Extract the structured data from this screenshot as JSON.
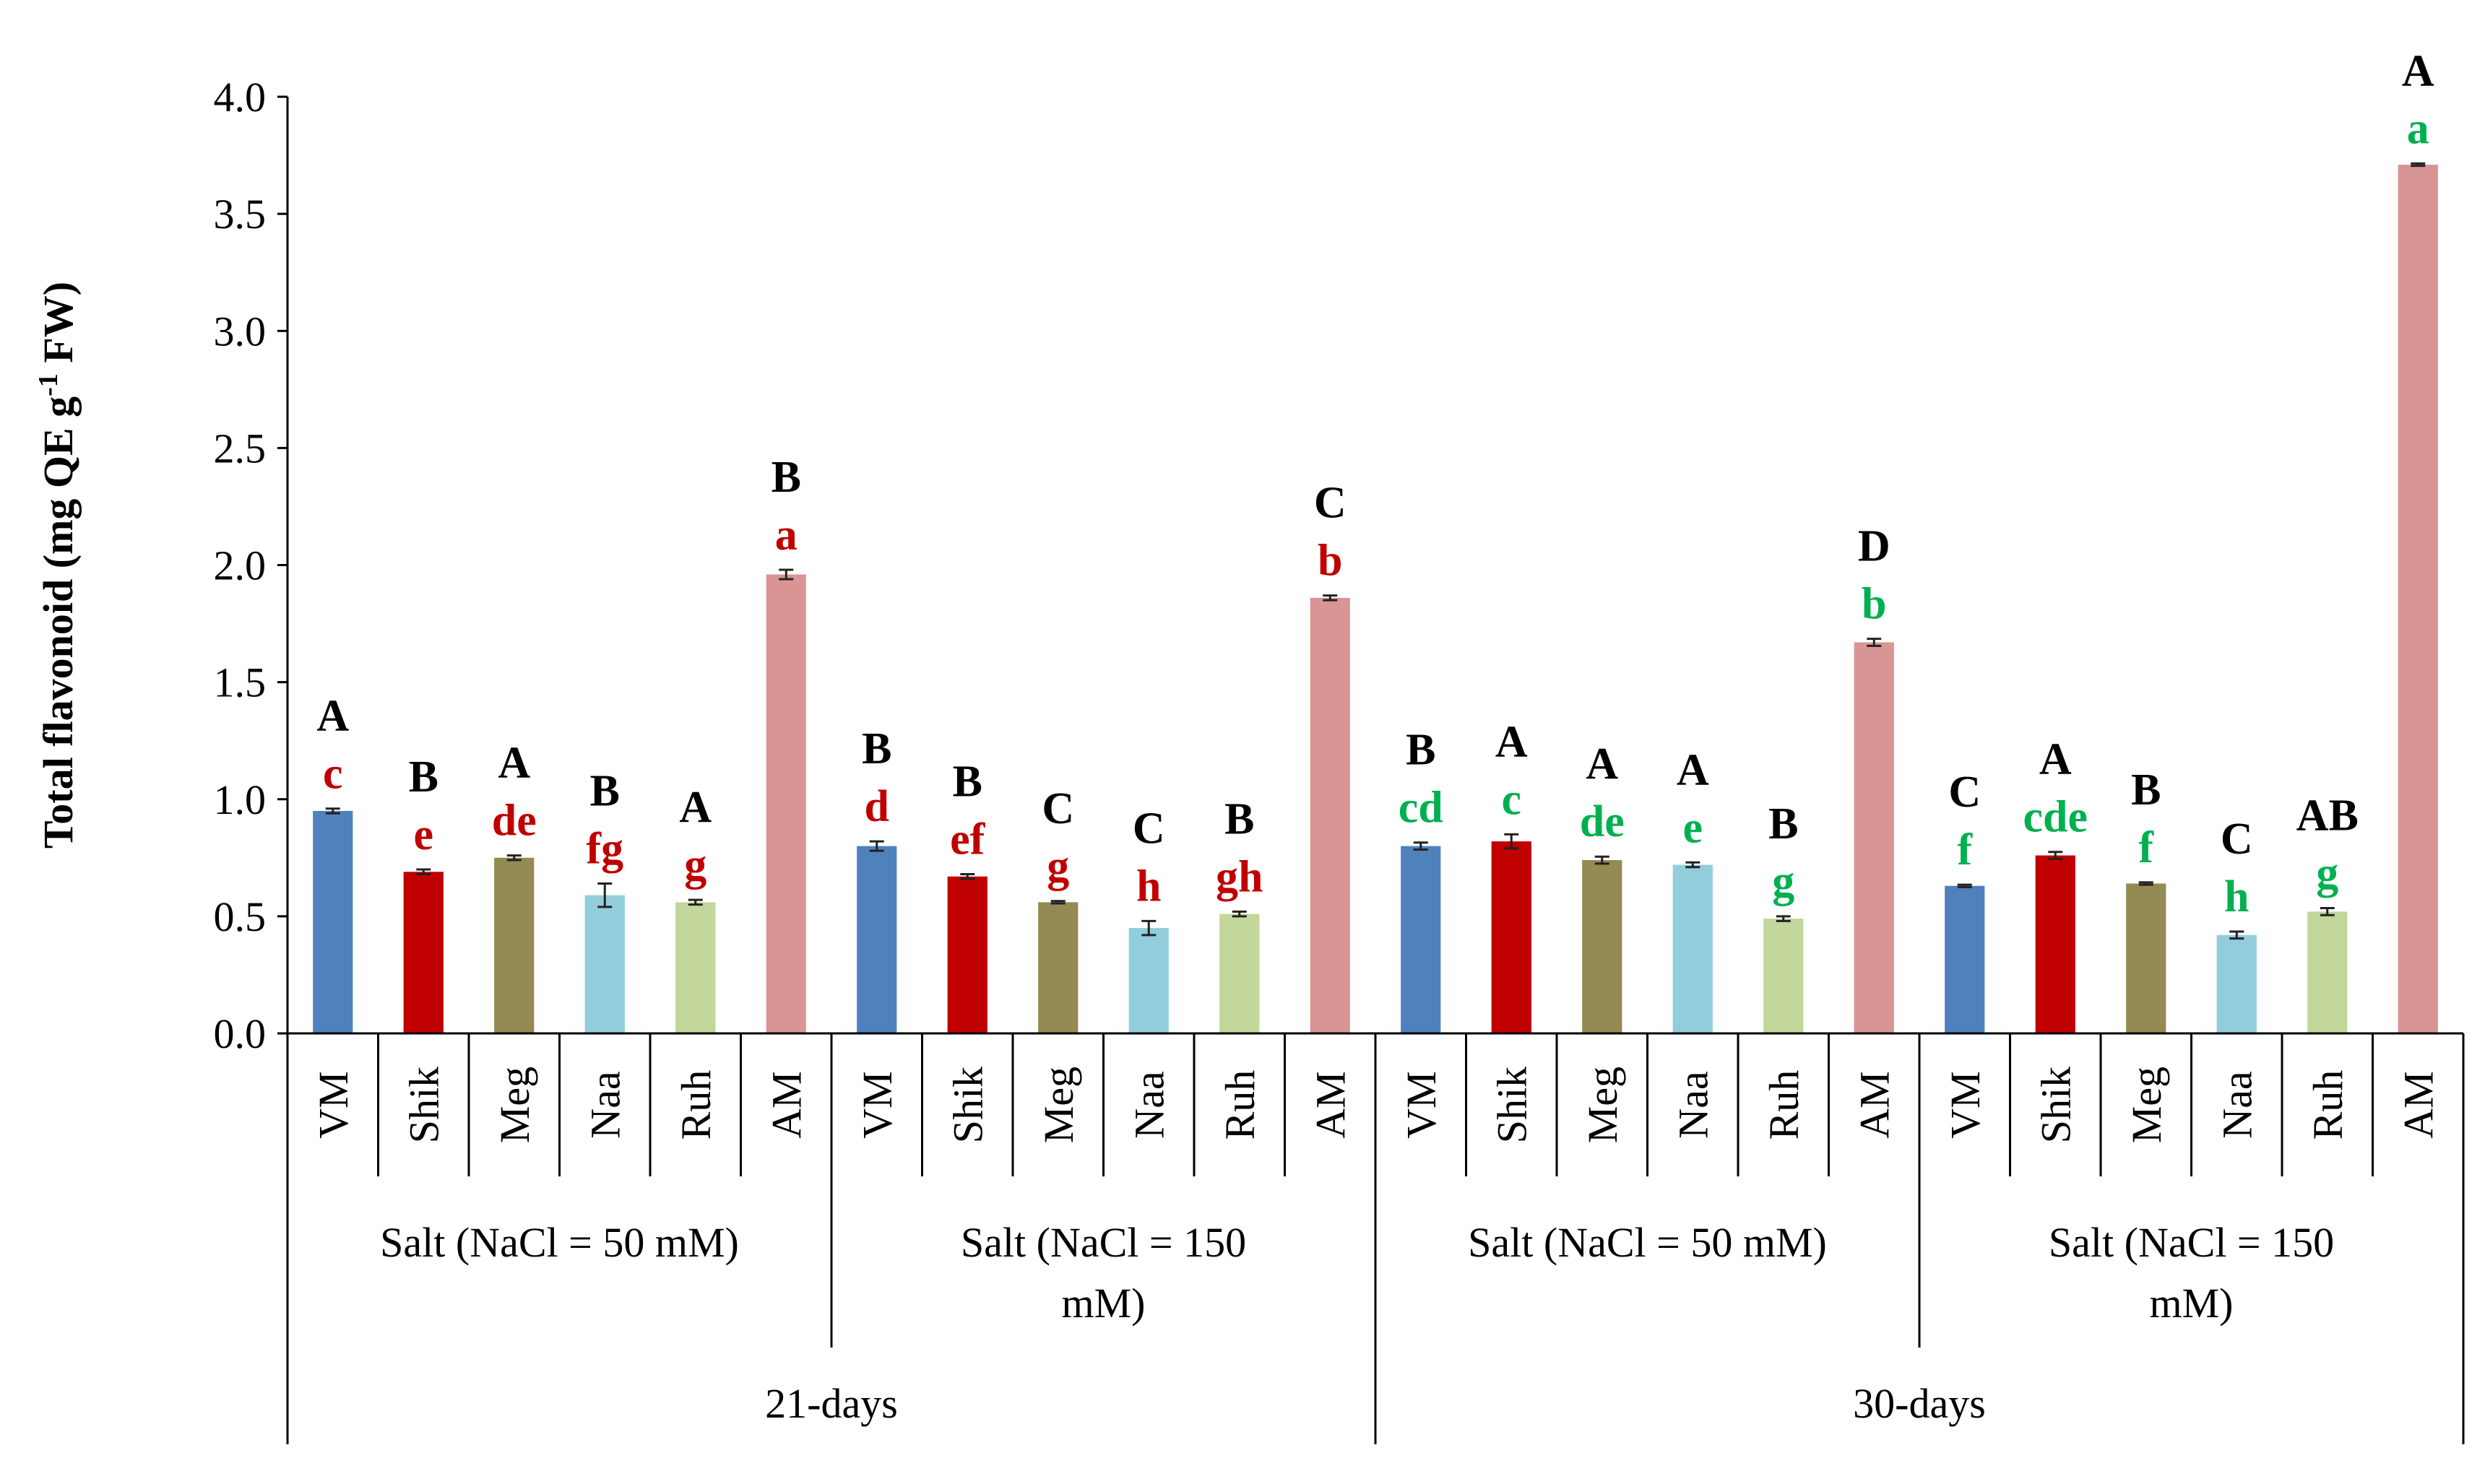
{
  "chart_data": {
    "type": "bar",
    "ylabel": "Total flavonoid (mg QE g",
    "ylabel_sup": "-1",
    "ylabel_end": " FW)",
    "ylim": [
      0,
      4.0
    ],
    "yticks": [
      "0.0",
      "0.5",
      "1.0",
      "1.5",
      "2.0",
      "2.5",
      "3.0",
      "3.5",
      "4.0"
    ],
    "grid": false,
    "categories": [
      "VM",
      "Shik",
      "Meg",
      "Naa",
      "Ruh",
      "AM",
      "VM",
      "Shik",
      "Meg",
      "Naa",
      "Ruh",
      "AM",
      "VM",
      "Shik",
      "Meg",
      "Naa",
      "Ruh",
      "AM",
      "VM",
      "Shik",
      "Meg",
      "Naa",
      "Ruh",
      "AM"
    ],
    "values": [
      0.95,
      0.69,
      0.75,
      0.59,
      0.56,
      1.96,
      0.8,
      0.67,
      0.56,
      0.45,
      0.51,
      1.86,
      0.8,
      0.82,
      0.74,
      0.72,
      0.49,
      1.67,
      0.63,
      0.76,
      0.64,
      0.42,
      0.52,
      3.71
    ],
    "errors": [
      0.01,
      0.01,
      0.01,
      0.05,
      0.01,
      0.02,
      0.02,
      0.01,
      0.005,
      0.03,
      0.01,
      0.01,
      0.015,
      0.03,
      0.015,
      0.01,
      0.01,
      0.015,
      0.005,
      0.015,
      0.005,
      0.015,
      0.015,
      0.005
    ],
    "bar_colors": [
      "#4f81bd",
      "#c00000",
      "#948a54",
      "#92cddc",
      "#c3d69b",
      "#d99594"
    ],
    "upper_letters": [
      "A",
      "B",
      "A",
      "B",
      "A",
      "B",
      "B",
      "B",
      "C",
      "C",
      "B",
      "C",
      "B",
      "A",
      "A",
      "A",
      "B",
      "D",
      "C",
      "A",
      "B",
      "C",
      "AB",
      "A"
    ],
    "upper_letter_color": "#000000",
    "lower_letters": [
      "c",
      "e",
      "de",
      "fg",
      "g",
      "a",
      "d",
      "ef",
      "g",
      "h",
      "gh",
      "b",
      "cd",
      "c",
      "de",
      "e",
      "g",
      "b",
      "f",
      "cde",
      "f",
      "h",
      "g",
      "a"
    ],
    "lower_letter_colors": [
      "#c00000",
      "#00b050"
    ],
    "groups": [
      {
        "label_lines": [
          "Salt  (NaCl = 50 mM)"
        ]
      },
      {
        "label_lines": [
          "Salt  (NaCl = 150",
          "mM)"
        ]
      },
      {
        "label_lines": [
          "Salt  (NaCl = 50 mM)"
        ]
      },
      {
        "label_lines": [
          "Salt  (NaCl = 150",
          "mM)"
        ]
      }
    ],
    "periods": [
      "21-days",
      "30-days"
    ]
  }
}
